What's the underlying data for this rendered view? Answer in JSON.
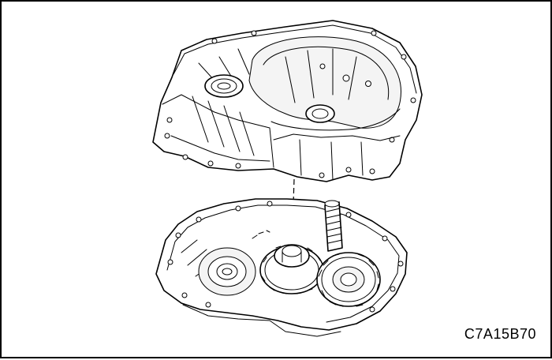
{
  "figure": {
    "reference_code": "C7A15B70"
  }
}
